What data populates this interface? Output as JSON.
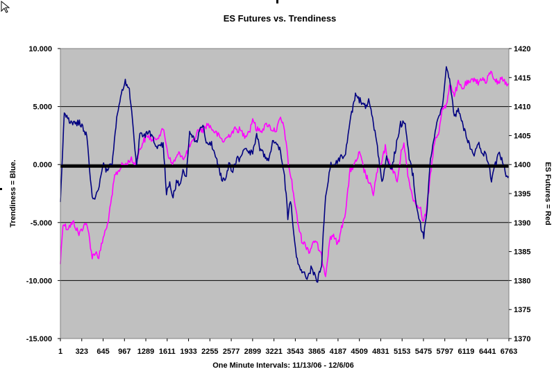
{
  "chart_data": {
    "type": "line",
    "title": "ES Futures vs. Trendiness",
    "xlabel": "One Minute Intervals: 11/13/06 - 12/6/06",
    "ylabel_left": "Trendiness = Blue.",
    "ylabel_right": "ES Futures = Red",
    "ylim_left": [
      -15,
      10
    ],
    "ylim_right": [
      1370,
      1420
    ],
    "xlim": [
      1,
      6763
    ],
    "left_ticks": [
      "10.000",
      "5.000",
      "0.000",
      "-5.000",
      "-10.000",
      "-15.000"
    ],
    "right_ticks": [
      "1420",
      "1415",
      "1410",
      "1405",
      "1400",
      "1395",
      "1390",
      "1385",
      "1380",
      "1375",
      "1370"
    ],
    "x_ticks": [
      "1",
      "323",
      "645",
      "967",
      "1289",
      "1611",
      "1933",
      "2255",
      "2577",
      "2899",
      "3221",
      "3543",
      "3865",
      "4187",
      "4509",
      "4831",
      "5153",
      "5475",
      "5797",
      "6119",
      "6441",
      "6763"
    ],
    "grid": "horizontal",
    "background": "#c0c0c0",
    "zero_line": {
      "value": -0.15,
      "color": "#000000"
    },
    "series": [
      {
        "axis": "left",
        "color": "#000080",
        "x": [
          1,
          60,
          150,
          300,
          400,
          480,
          560,
          640,
          700,
          780,
          850,
          920,
          980,
          1040,
          1100,
          1150,
          1200,
          1280,
          1350,
          1450,
          1550,
          1600,
          1650,
          1700,
          1750,
          1800,
          1850,
          1900,
          1950,
          2000,
          2050,
          2100,
          2150,
          2200,
          2280,
          2350,
          2420,
          2480,
          2540,
          2600,
          2660,
          2720,
          2780,
          2840,
          2900,
          2960,
          3020,
          3080,
          3140,
          3200,
          3260,
          3320,
          3380,
          3430,
          3470,
          3520,
          3560,
          3620,
          3680,
          3720,
          3780,
          3830,
          3880,
          3940,
          4000,
          4080,
          4150,
          4220,
          4300,
          4380,
          4450,
          4520,
          4590,
          4660,
          4720,
          4780,
          4850,
          4920,
          4990,
          5060,
          5130,
          5200,
          5260,
          5320,
          5380,
          5440,
          5480,
          5530,
          5580,
          5640,
          5700,
          5760,
          5820,
          5880,
          5940,
          6000,
          6060,
          6120,
          6180,
          6240,
          6300,
          6360,
          6420,
          6460,
          6500,
          6560,
          6620,
          6680,
          6720,
          6763
        ],
        "values": [
          -3.0,
          4.5,
          3.5,
          3.6,
          2.5,
          -3.0,
          -2.5,
          0.0,
          -0.5,
          0.0,
          4.0,
          6.0,
          7.2,
          6.5,
          3.0,
          -0.2,
          2.8,
          2.5,
          2.8,
          1.5,
          1.8,
          -2.5,
          -1.5,
          -2.8,
          -1.5,
          -1.8,
          -0.5,
          -1.0,
          2.8,
          2.5,
          1.8,
          2.8,
          3.5,
          2.0,
          1.8,
          0.5,
          -1.0,
          -1.5,
          0.0,
          -0.5,
          0.5,
          0.5,
          1.5,
          1.0,
          1.0,
          2.5,
          1.2,
          0.8,
          0.5,
          2.0,
          2.0,
          1.2,
          -1.0,
          -4.5,
          -3.0,
          -6.0,
          -8.0,
          -9.0,
          -9.5,
          -9.8,
          -9.0,
          -9.5,
          -10.0,
          -8.5,
          -2.5,
          0.0,
          0.0,
          0.5,
          1.0,
          4.0,
          6.0,
          5.5,
          5.0,
          5.5,
          3.5,
          1.5,
          -1.5,
          0.5,
          -0.5,
          1.5,
          3.5,
          3.5,
          0.5,
          -1.0,
          -4.0,
          -5.5,
          -6.2,
          -4.0,
          0.5,
          2.5,
          4.0,
          5.0,
          8.5,
          7.0,
          4.0,
          5.0,
          3.5,
          2.5,
          1.5,
          1.0,
          2.0,
          1.0,
          0.8,
          0.0,
          -1.5,
          0.0,
          1.0,
          0.0,
          -0.8,
          -1.0
        ]
      },
      {
        "axis": "right",
        "color": "#ff00ff",
        "x": [
          1,
          40,
          100,
          200,
          280,
          330,
          380,
          430,
          480,
          530,
          580,
          620,
          660,
          700,
          760,
          820,
          880,
          940,
          1000,
          1060,
          1120,
          1180,
          1250,
          1320,
          1400,
          1480,
          1560,
          1620,
          1680,
          1740,
          1800,
          1870,
          1940,
          2010,
          2080,
          2150,
          2220,
          2300,
          2380,
          2460,
          2540,
          2620,
          2700,
          2780,
          2860,
          2900,
          2960,
          3040,
          3120,
          3200,
          3260,
          3320,
          3380,
          3440,
          3490,
          3540,
          3580,
          3640,
          3700,
          3760,
          3820,
          3880,
          3940,
          4000,
          4060,
          4120,
          4180,
          4240,
          4300,
          4370,
          4440,
          4510,
          4580,
          4650,
          4720,
          4780,
          4840,
          4900,
          4960,
          5020,
          5080,
          5140,
          5180,
          5240,
          5300,
          5360,
          5420,
          5470,
          5520,
          5580,
          5640,
          5700,
          5760,
          5820,
          5880,
          5940,
          6000,
          6060,
          6120,
          6180,
          6240,
          6300,
          6360,
          6420,
          6480,
          6540,
          6600,
          6660,
          6720,
          6763
        ],
        "values": [
          1383,
          1390,
          1389,
          1390,
          1388,
          1389,
          1390,
          1388,
          1384,
          1385,
          1384,
          1386,
          1388,
          1389,
          1393,
          1398,
          1399,
          1400,
          1400,
          1401,
          1400,
          1402,
          1404,
          1405,
          1404,
          1405,
          1406,
          1402,
          1400,
          1401,
          1402,
          1401,
          1403,
          1404,
          1406,
          1406,
          1407,
          1406,
          1405,
          1404,
          1405,
          1406,
          1406,
          1405,
          1406,
          1408,
          1406,
          1406,
          1407,
          1406,
          1406,
          1408,
          1406,
          1400,
          1397,
          1393,
          1390,
          1387,
          1386,
          1385,
          1387,
          1386,
          1384,
          1381,
          1387,
          1388,
          1386,
          1389,
          1392,
          1399,
          1400,
          1402,
          1399,
          1397,
          1395,
          1399,
          1400,
          1403,
          1400,
          1399,
          1397,
          1402,
          1404,
          1398,
          1395,
          1393,
          1393,
          1390,
          1392,
          1398,
          1404,
          1405,
          1410,
          1410,
          1414,
          1412,
          1414,
          1413,
          1414,
          1414,
          1415,
          1414,
          1415,
          1414,
          1416,
          1415,
          1414,
          1415,
          1414,
          1414
        ]
      }
    ]
  }
}
